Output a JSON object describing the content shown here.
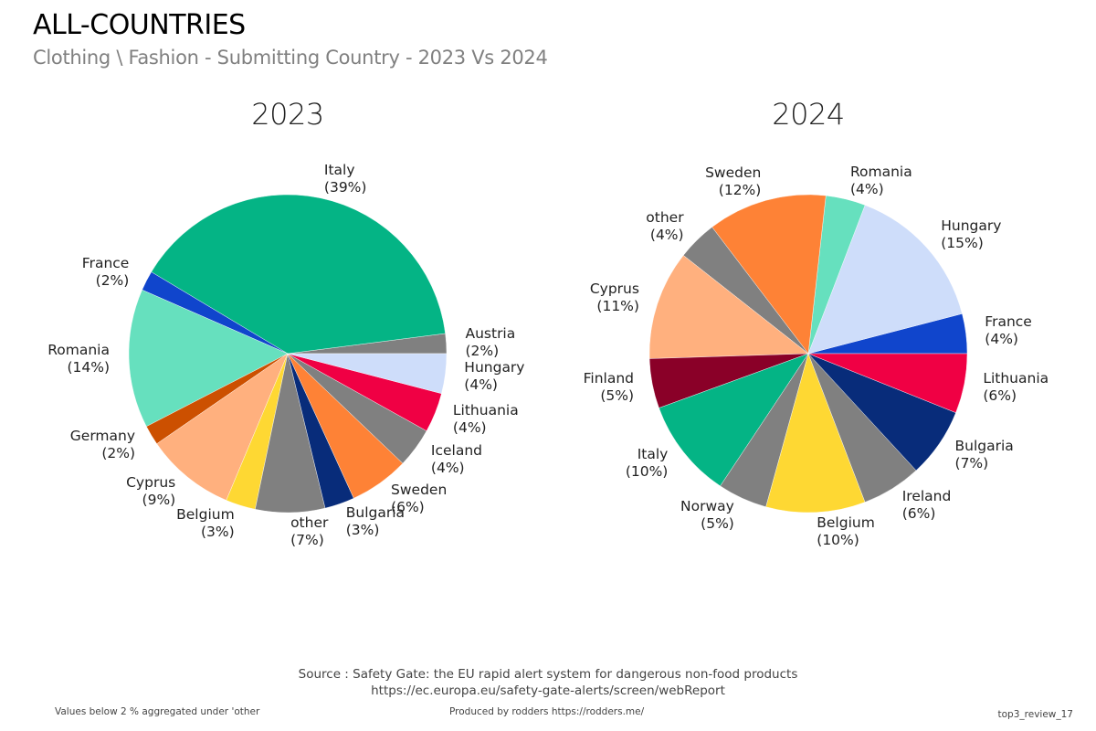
{
  "header": {
    "title": "ALL-COUNTRIES",
    "subtitle": "Clothing \\ Fashion - Submitting Country - 2023 Vs 2024"
  },
  "chart_data": [
    {
      "type": "pie",
      "title": "2023",
      "start_angle_deg": 0,
      "direction": "counterclockwise",
      "slices": [
        {
          "label": "Austria",
          "value": 2,
          "display": "(2%)",
          "color": "#808080"
        },
        {
          "label": "Italy",
          "value": 39,
          "display": "(39%)",
          "color": "#04B485"
        },
        {
          "label": "France",
          "value": 2,
          "display": "(2%)",
          "color": "#1045CC"
        },
        {
          "label": "Romania",
          "value": 14,
          "display": "(14%)",
          "color": "#66E0BE"
        },
        {
          "label": "Germany",
          "value": 2,
          "display": "(2%)",
          "color": "#CC5000"
        },
        {
          "label": "Cyprus",
          "value": 9,
          "display": "(9%)",
          "color": "#FFB07E"
        },
        {
          "label": "Belgium",
          "value": 3,
          "display": "(3%)",
          "color": "#FED833"
        },
        {
          "label": "other",
          "value": 7,
          "display": "(7%)",
          "color": "#808080"
        },
        {
          "label": "Bulgaria",
          "value": 3,
          "display": "(3%)",
          "color": "#082C7A"
        },
        {
          "label": "Sweden",
          "value": 6,
          "display": "(6%)",
          "color": "#FE8236"
        },
        {
          "label": "Iceland",
          "value": 4,
          "display": "(4%)",
          "color": "#808080"
        },
        {
          "label": "Lithuania",
          "value": 4,
          "display": "(4%)",
          "color": "#F00044"
        },
        {
          "label": "Hungary",
          "value": 4,
          "display": "(4%)",
          "color": "#CEDDFA"
        }
      ]
    },
    {
      "type": "pie",
      "title": "2024",
      "start_angle_deg": 0,
      "direction": "counterclockwise",
      "slices": [
        {
          "label": "France",
          "value": 4,
          "display": "(4%)",
          "color": "#1045CC"
        },
        {
          "label": "Hungary",
          "value": 15,
          "display": "(15%)",
          "color": "#CEDDFA"
        },
        {
          "label": "Romania",
          "value": 4,
          "display": "(4%)",
          "color": "#66E0BE"
        },
        {
          "label": "Sweden",
          "value": 12,
          "display": "(12%)",
          "color": "#FE8236"
        },
        {
          "label": "other",
          "value": 4,
          "display": "(4%)",
          "color": "#808080"
        },
        {
          "label": "Cyprus",
          "value": 11,
          "display": "(11%)",
          "color": "#FFB07E"
        },
        {
          "label": "Finland",
          "value": 5,
          "display": "(5%)",
          "color": "#8A0028"
        },
        {
          "label": "Italy",
          "value": 10,
          "display": "(10%)",
          "color": "#04B485"
        },
        {
          "label": "Norway",
          "value": 5,
          "display": "(5%)",
          "color": "#808080"
        },
        {
          "label": "Belgium",
          "value": 10,
          "display": "(10%)",
          "color": "#FED833"
        },
        {
          "label": "Ireland",
          "value": 6,
          "display": "(6%)",
          "color": "#808080"
        },
        {
          "label": "Bulgaria",
          "value": 7,
          "display": "(7%)",
          "color": "#082C7A"
        },
        {
          "label": "Lithuania",
          "value": 6,
          "display": "(6%)",
          "color": "#F00044"
        }
      ]
    }
  ],
  "footer": {
    "source_line1": "Source : Safety Gate: the EU rapid alert system for dangerous non-food products",
    "source_line2": "https://ec.europa.eu/safety-gate-alerts/screen/webReport",
    "note": "Values below 2 % aggregated under 'other",
    "produced_by": "Produced by rodders https://rodders.me/",
    "ref": "top3_review_17"
  }
}
